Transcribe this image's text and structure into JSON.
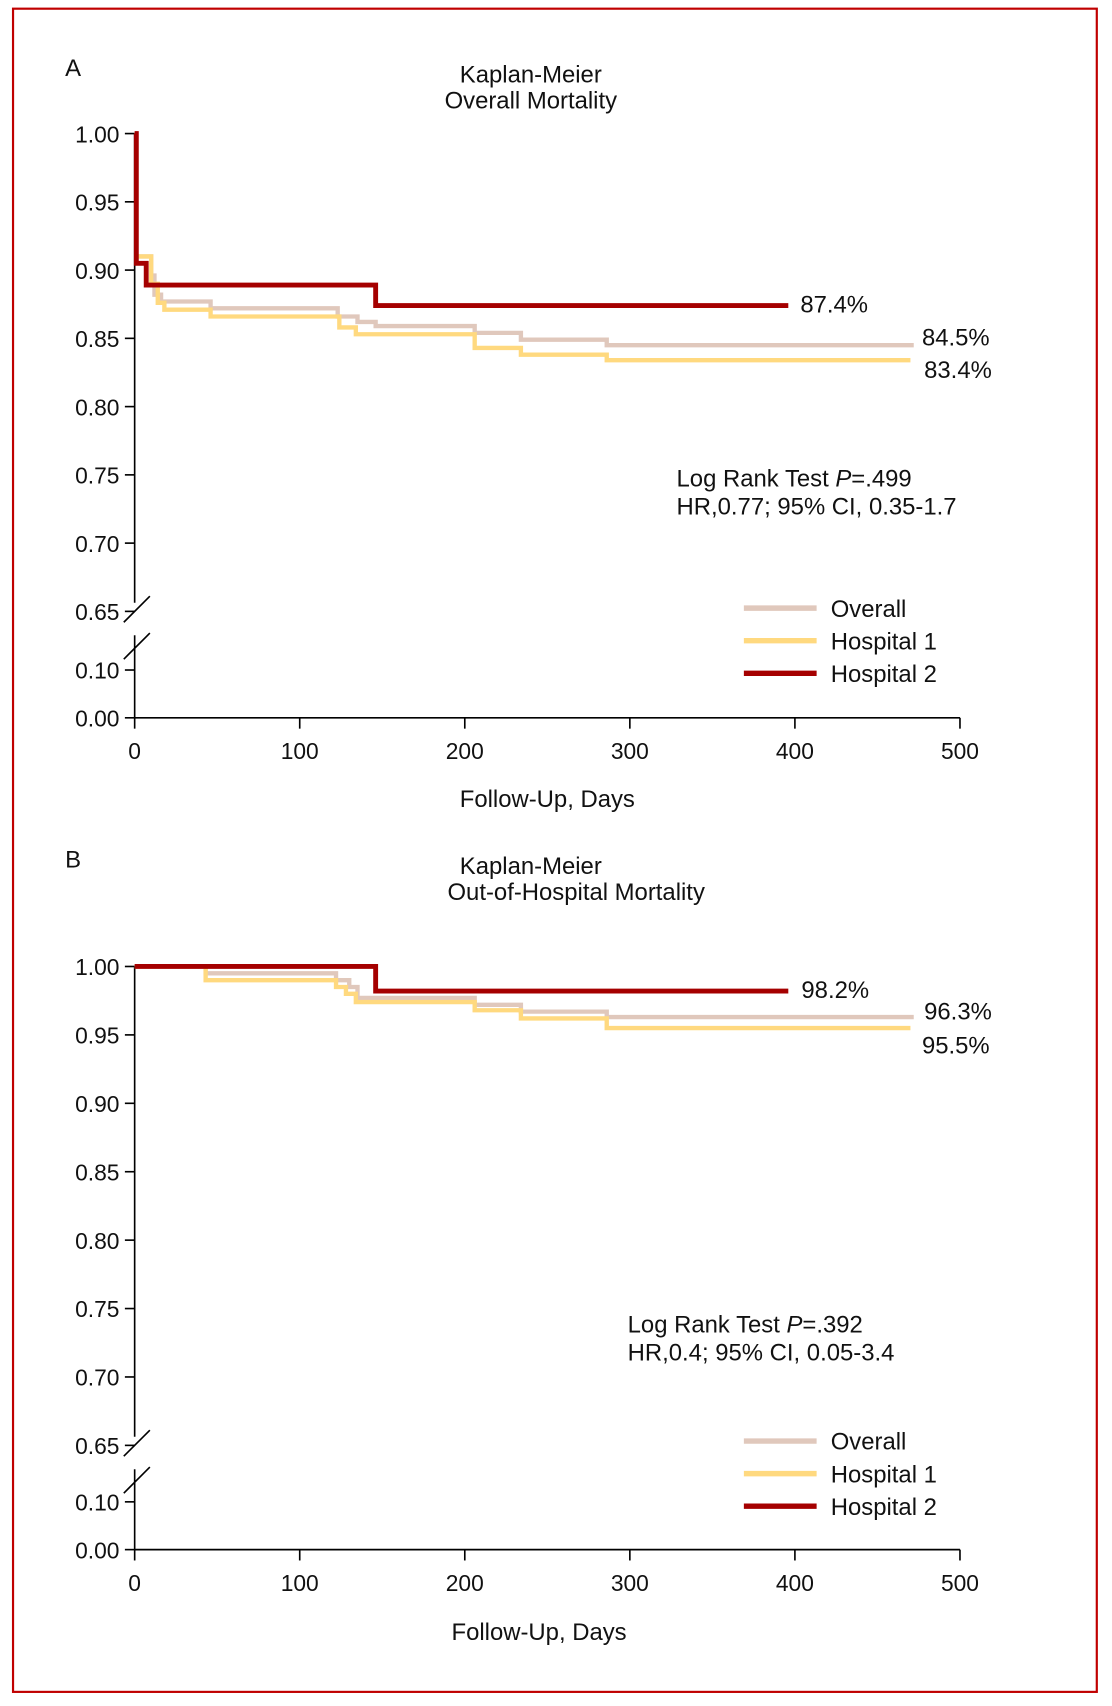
{
  "colors": {
    "overall": "#e0c8bc",
    "hospital1": "#ffd97f",
    "hospital2": "#a50000",
    "frame": "#c00000"
  },
  "chart_data": [
    {
      "type": "line",
      "step": true,
      "panel_label": "A",
      "title": "Kaplan-Meier",
      "subtitle": "Overall Mortality",
      "xlabel": "Follow-Up, Days",
      "ylabel": "",
      "xlim": [
        0,
        500
      ],
      "ylim": [
        0,
        1.0
      ],
      "y_axis_break": [
        0.1,
        0.65
      ],
      "xticks": [
        "0",
        "100",
        "200",
        "300",
        "400",
        "500"
      ],
      "yticks": [
        "1.00",
        "0.95",
        "0.90",
        "0.85",
        "0.80",
        "0.75",
        "0.70",
        "0.65",
        "0.10",
        "0.00"
      ],
      "annotation_line1_prefix": "Log Rank Test ",
      "annotation_p": "P",
      "annotation_line1_value": "=.499",
      "annotation_line2": "HR,0.77; 95% CI, 0.35-1.7",
      "legend_position": "bottom-right",
      "series": [
        {
          "name": "Overall",
          "key": "overall",
          "end_label": "84.5%",
          "x": [
            0,
            1,
            10,
            12,
            16,
            46,
            123,
            135,
            146,
            206,
            234,
            286,
            472
          ],
          "y": [
            1.0,
            0.91,
            0.896,
            0.882,
            0.877,
            0.872,
            0.866,
            0.862,
            0.859,
            0.854,
            0.849,
            0.845,
            0.845
          ]
        },
        {
          "name": "Hospital 1",
          "key": "hospital1",
          "end_label": "83.4%",
          "x": [
            0,
            1,
            10,
            14,
            18,
            46,
            124,
            134,
            206,
            234,
            286,
            470
          ],
          "y": [
            1.0,
            0.91,
            0.89,
            0.876,
            0.871,
            0.866,
            0.858,
            0.853,
            0.843,
            0.838,
            0.834,
            0.834
          ]
        },
        {
          "name": "Hospital 2",
          "key": "hospital2",
          "end_label": "87.4%",
          "x": [
            0,
            1,
            7,
            146,
            396
          ],
          "y": [
            1.0,
            0.905,
            0.889,
            0.874,
            0.874
          ]
        }
      ]
    },
    {
      "type": "line",
      "step": true,
      "panel_label": "B",
      "title": "Kaplan-Meier",
      "subtitle": "Out-of-Hospital Mortality",
      "xlabel": "Follow-Up, Days",
      "ylabel": "",
      "xlim": [
        0,
        500
      ],
      "ylim": [
        0,
        1.0
      ],
      "y_axis_break": [
        0.1,
        0.65
      ],
      "xticks": [
        "0",
        "100",
        "200",
        "300",
        "400",
        "500"
      ],
      "yticks": [
        "1.00",
        "0.95",
        "0.90",
        "0.85",
        "0.80",
        "0.75",
        "0.70",
        "0.65",
        "0.10",
        "0.00"
      ],
      "annotation_line1_prefix": "Log Rank Test ",
      "annotation_p": "P",
      "annotation_line1_value": "=.392",
      "annotation_line2": "HR,0.4; 95% CI, 0.05-3.4",
      "legend_position": "bottom-right",
      "series": [
        {
          "name": "Overall",
          "key": "overall",
          "end_label": "96.3%",
          "x": [
            0,
            43,
            122,
            130,
            135,
            206,
            234,
            286,
            472
          ],
          "y": [
            1.0,
            0.995,
            0.99,
            0.985,
            0.977,
            0.972,
            0.967,
            0.963,
            0.963
          ]
        },
        {
          "name": "Hospital 1",
          "key": "hospital1",
          "end_label": "95.5%",
          "x": [
            0,
            43,
            122,
            128,
            134,
            206,
            234,
            286,
            470
          ],
          "y": [
            1.0,
            0.99,
            0.985,
            0.98,
            0.974,
            0.968,
            0.962,
            0.955,
            0.955
          ]
        },
        {
          "name": "Hospital 2",
          "key": "hospital2",
          "end_label": "98.2%",
          "x": [
            0,
            146,
            396
          ],
          "y": [
            1.0,
            0.982,
            0.982
          ]
        }
      ]
    }
  ]
}
